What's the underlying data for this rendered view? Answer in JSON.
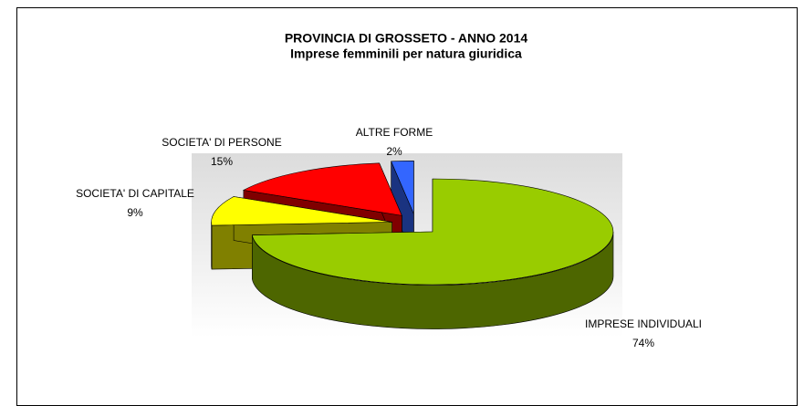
{
  "chart_data": {
    "type": "pie3d",
    "title": "PROVINCIA DI GROSSETO - ANNO 2014",
    "subtitle": "Imprese femminili per natura giuridica",
    "categories": [
      "IMPRESE INDIVIDUALI",
      "SOCIETA' DI CAPITALE",
      "SOCIETA' DI PERSONE",
      "ALTRE FORME"
    ],
    "values": [
      74,
      9,
      15,
      2
    ],
    "value_labels": [
      "74%",
      "9%",
      "15%",
      "2%"
    ],
    "colors": [
      "#99cc00",
      "#ffff00",
      "#ff0000",
      "#3366ff"
    ]
  }
}
